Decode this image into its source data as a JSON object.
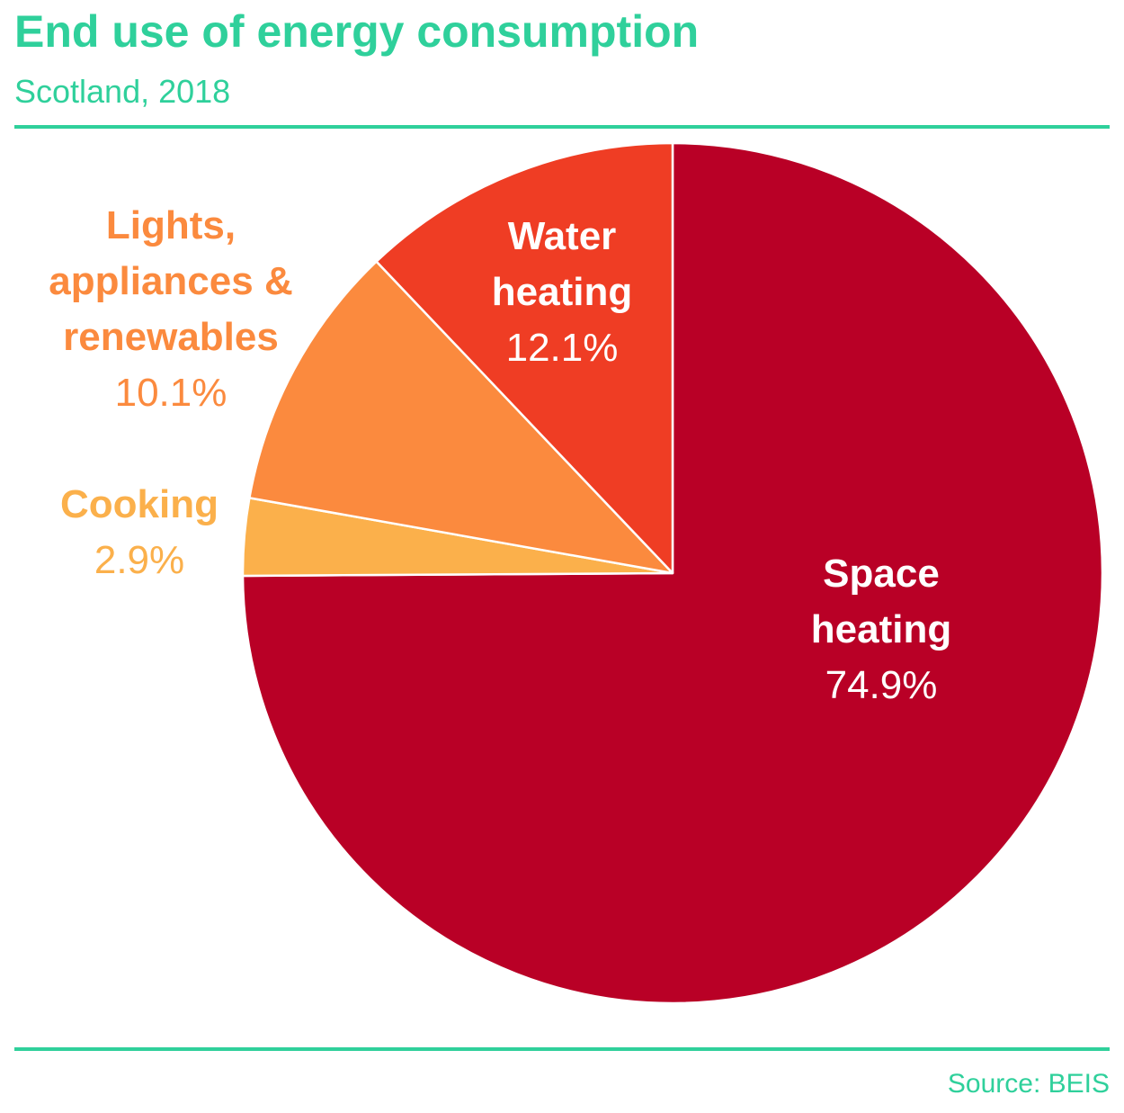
{
  "header": {
    "title": "End use of energy consumption",
    "subtitle": "Scotland, 2018"
  },
  "footer": {
    "source": "Source: BEIS"
  },
  "colors": {
    "accent": "#2fd09b"
  },
  "chart_data": {
    "type": "pie",
    "title": "End use of energy consumption",
    "subtitle": "Scotland, 2018",
    "slices": [
      {
        "name_lines": [
          "Space",
          "heating"
        ],
        "value": 74.9,
        "value_label": "74.9%",
        "color": "#b90026",
        "label_color": "#ffffff"
      },
      {
        "name_lines": [
          "Cooking"
        ],
        "value": 2.9,
        "value_label": "2.9%",
        "color": "#fbb04b",
        "label_color": "#fbb04b"
      },
      {
        "name_lines": [
          "Lights,",
          "appliances &",
          "renewables"
        ],
        "value": 10.1,
        "value_label": "10.1%",
        "color": "#fb8a3e",
        "label_color": "#fb8a3e"
      },
      {
        "name_lines": [
          "Water",
          "heating"
        ],
        "value": 12.1,
        "value_label": "12.1%",
        "color": "#ef3d24",
        "label_color": "#ffffff"
      }
    ],
    "start": "12 o'clock",
    "direction": "clockwise",
    "legend": "none (direct labels)"
  }
}
